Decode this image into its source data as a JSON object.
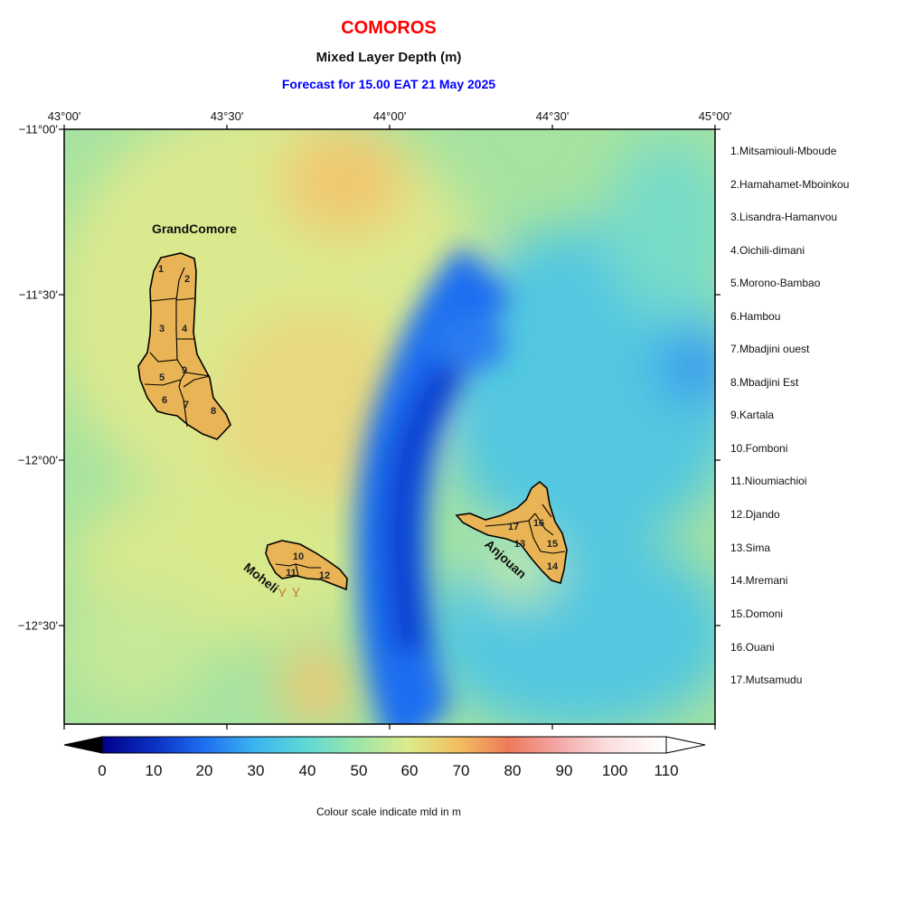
{
  "header": {
    "title": "COMOROS",
    "title_color": "#ff0000",
    "subtitle": "Mixed Layer Depth (m)",
    "forecast": "Forecast for  15.00 EAT 21 May 2025",
    "forecast_color": "#0000ff"
  },
  "axes": {
    "lon_labels": [
      "43°00'",
      "43°30'",
      "44°00'",
      "44°30'",
      "45°00'"
    ],
    "lat_labels": [
      "−11°00'",
      "−11°30'",
      "−12°00'",
      "−12°30'"
    ]
  },
  "islands": {
    "grand_comore": "GrandComore",
    "moheli": "Moheli",
    "anjouan": "Anjouan",
    "fill_color": "#e8b455",
    "region_numbers": [
      "1",
      "2",
      "3",
      "4",
      "5",
      "6",
      "7",
      "8",
      "9",
      "10",
      "11",
      "12",
      "13",
      "14",
      "15",
      "16",
      "17"
    ]
  },
  "legend": [
    "1.Mitsamiouli-Mboude",
    "2.Hamahamet-Mboinkou",
    "3.Lisandra-Hamanvou",
    "4.Oichili-dimani",
    "5.Morono-Bambao",
    "6.Hambou",
    "7.Mbadjini ouest",
    "8.Mbadjini Est",
    "9.Kartala",
    "10.Fomboni",
    "11.Nioumiachioi",
    "12.Djando",
    "13.Sima",
    "14.Mremani",
    "15.Domoni",
    "16.Ouani",
    "17.Mutsamudu"
  ],
  "colorbar": {
    "labels": [
      "0",
      "10",
      "20",
      "30",
      "40",
      "50",
      "60",
      "70",
      "80",
      "90",
      "100",
      "110"
    ],
    "caption": "Colour scale indicate mld in m",
    "colors": [
      "#00008b",
      "#0a3ccf",
      "#1e6ef0",
      "#3cb4f0",
      "#5ed8d8",
      "#9be6a8",
      "#dceb8c",
      "#f2c060",
      "#ee7a5a",
      "#f4a8a8",
      "#fbe0e0",
      "#ffffff"
    ]
  }
}
